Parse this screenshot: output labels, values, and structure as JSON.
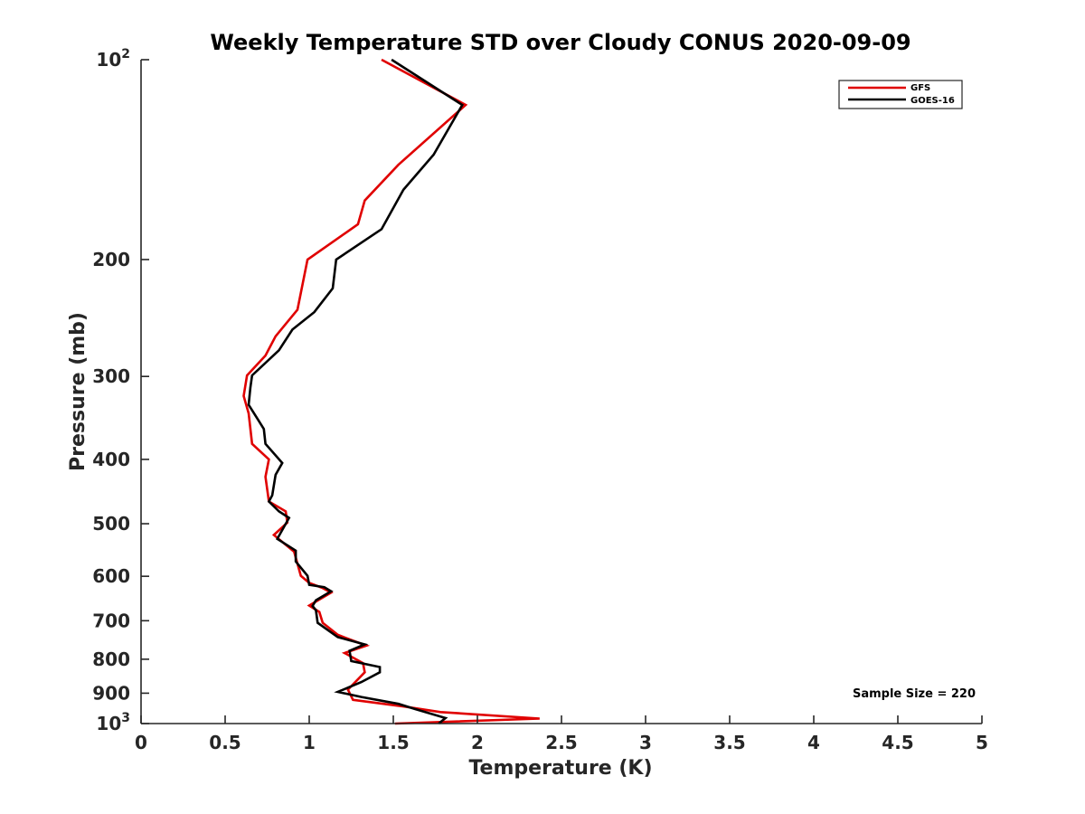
{
  "chart_data": {
    "type": "line",
    "title": "Weekly Temperature STD over Cloudy CONUS 2020-09-09",
    "xlabel": "Temperature (K)",
    "ylabel": "Pressure (mb)",
    "xlim": [
      0,
      5
    ],
    "ylim": [
      100,
      1000
    ],
    "y_scale": "log",
    "y_reversed": true,
    "grid": false,
    "legend_position": "top-right",
    "x_ticks": [
      0,
      0.5,
      1,
      1.5,
      2,
      2.5,
      3,
      3.5,
      4,
      4.5,
      5
    ],
    "x_tick_labels": [
      "0",
      "0.5",
      "1",
      "1.5",
      "2",
      "2.5",
      "3",
      "3.5",
      "4",
      "4.5",
      "5"
    ],
    "y_ticks": [
      100,
      200,
      300,
      400,
      500,
      600,
      700,
      800,
      900,
      1000
    ],
    "y_tick_labels": [
      {
        "base": "10",
        "exp": "2"
      },
      {
        "base": "200",
        "exp": ""
      },
      {
        "base": "300",
        "exp": ""
      },
      {
        "base": "400",
        "exp": ""
      },
      {
        "base": "500",
        "exp": ""
      },
      {
        "base": "600",
        "exp": ""
      },
      {
        "base": "700",
        "exp": ""
      },
      {
        "base": "800",
        "exp": ""
      },
      {
        "base": "900",
        "exp": ""
      },
      {
        "base": "10",
        "exp": "3"
      }
    ],
    "annotation": "Sample Size = 220",
    "series": [
      {
        "name": "GFS",
        "color": "#e00000",
        "points": [
          [
            1.43,
            100
          ],
          [
            1.93,
            117
          ],
          [
            1.53,
            144
          ],
          [
            1.33,
            163
          ],
          [
            1.29,
            177
          ],
          [
            0.99,
            200
          ],
          [
            0.93,
            238
          ],
          [
            0.8,
            261
          ],
          [
            0.74,
            279
          ],
          [
            0.63,
            299
          ],
          [
            0.61,
            321
          ],
          [
            0.64,
            341
          ],
          [
            0.66,
            379
          ],
          [
            0.76,
            400
          ],
          [
            0.74,
            425
          ],
          [
            0.76,
            463
          ],
          [
            0.86,
            479
          ],
          [
            0.87,
            498
          ],
          [
            0.79,
            520
          ],
          [
            0.91,
            551
          ],
          [
            0.95,
            599
          ],
          [
            1.0,
            614
          ],
          [
            1.08,
            625
          ],
          [
            1.13,
            635
          ],
          [
            1.04,
            655
          ],
          [
            1.0,
            664
          ],
          [
            1.06,
            679
          ],
          [
            1.08,
            705
          ],
          [
            1.17,
            735
          ],
          [
            1.29,
            755
          ],
          [
            1.34,
            763
          ],
          [
            1.21,
            783
          ],
          [
            1.32,
            811
          ],
          [
            1.33,
            837
          ],
          [
            1.23,
            889
          ],
          [
            1.26,
            921
          ],
          [
            1.57,
            943
          ],
          [
            1.78,
            961
          ],
          [
            2.37,
            983
          ],
          [
            1.51,
            1000
          ]
        ]
      },
      {
        "name": "GOES-16",
        "color": "#000000",
        "points": [
          [
            1.49,
            100
          ],
          [
            1.91,
            117
          ],
          [
            1.74,
            139
          ],
          [
            1.56,
            157
          ],
          [
            1.43,
            180
          ],
          [
            1.16,
            200
          ],
          [
            1.14,
            221
          ],
          [
            1.03,
            240
          ],
          [
            0.9,
            255
          ],
          [
            0.82,
            274
          ],
          [
            0.66,
            299
          ],
          [
            0.65,
            312
          ],
          [
            0.64,
            331
          ],
          [
            0.7,
            350
          ],
          [
            0.73,
            360
          ],
          [
            0.74,
            379
          ],
          [
            0.84,
            405
          ],
          [
            0.8,
            422
          ],
          [
            0.78,
            453
          ],
          [
            0.76,
            463
          ],
          [
            0.82,
            479
          ],
          [
            0.88,
            490
          ],
          [
            0.81,
            527
          ],
          [
            0.92,
            549
          ],
          [
            0.92,
            570
          ],
          [
            0.99,
            599
          ],
          [
            1.0,
            618
          ],
          [
            1.09,
            623
          ],
          [
            1.13,
            632
          ],
          [
            1.04,
            652
          ],
          [
            1.02,
            665
          ],
          [
            1.04,
            675
          ],
          [
            1.05,
            705
          ],
          [
            1.17,
            741
          ],
          [
            1.33,
            760
          ],
          [
            1.24,
            777
          ],
          [
            1.25,
            805
          ],
          [
            1.42,
            822
          ],
          [
            1.42,
            837
          ],
          [
            1.31,
            866
          ],
          [
            1.17,
            896
          ],
          [
            1.31,
            912
          ],
          [
            1.53,
            934
          ],
          [
            1.63,
            951
          ],
          [
            1.81,
            981
          ],
          [
            1.77,
            1000
          ]
        ]
      }
    ]
  }
}
